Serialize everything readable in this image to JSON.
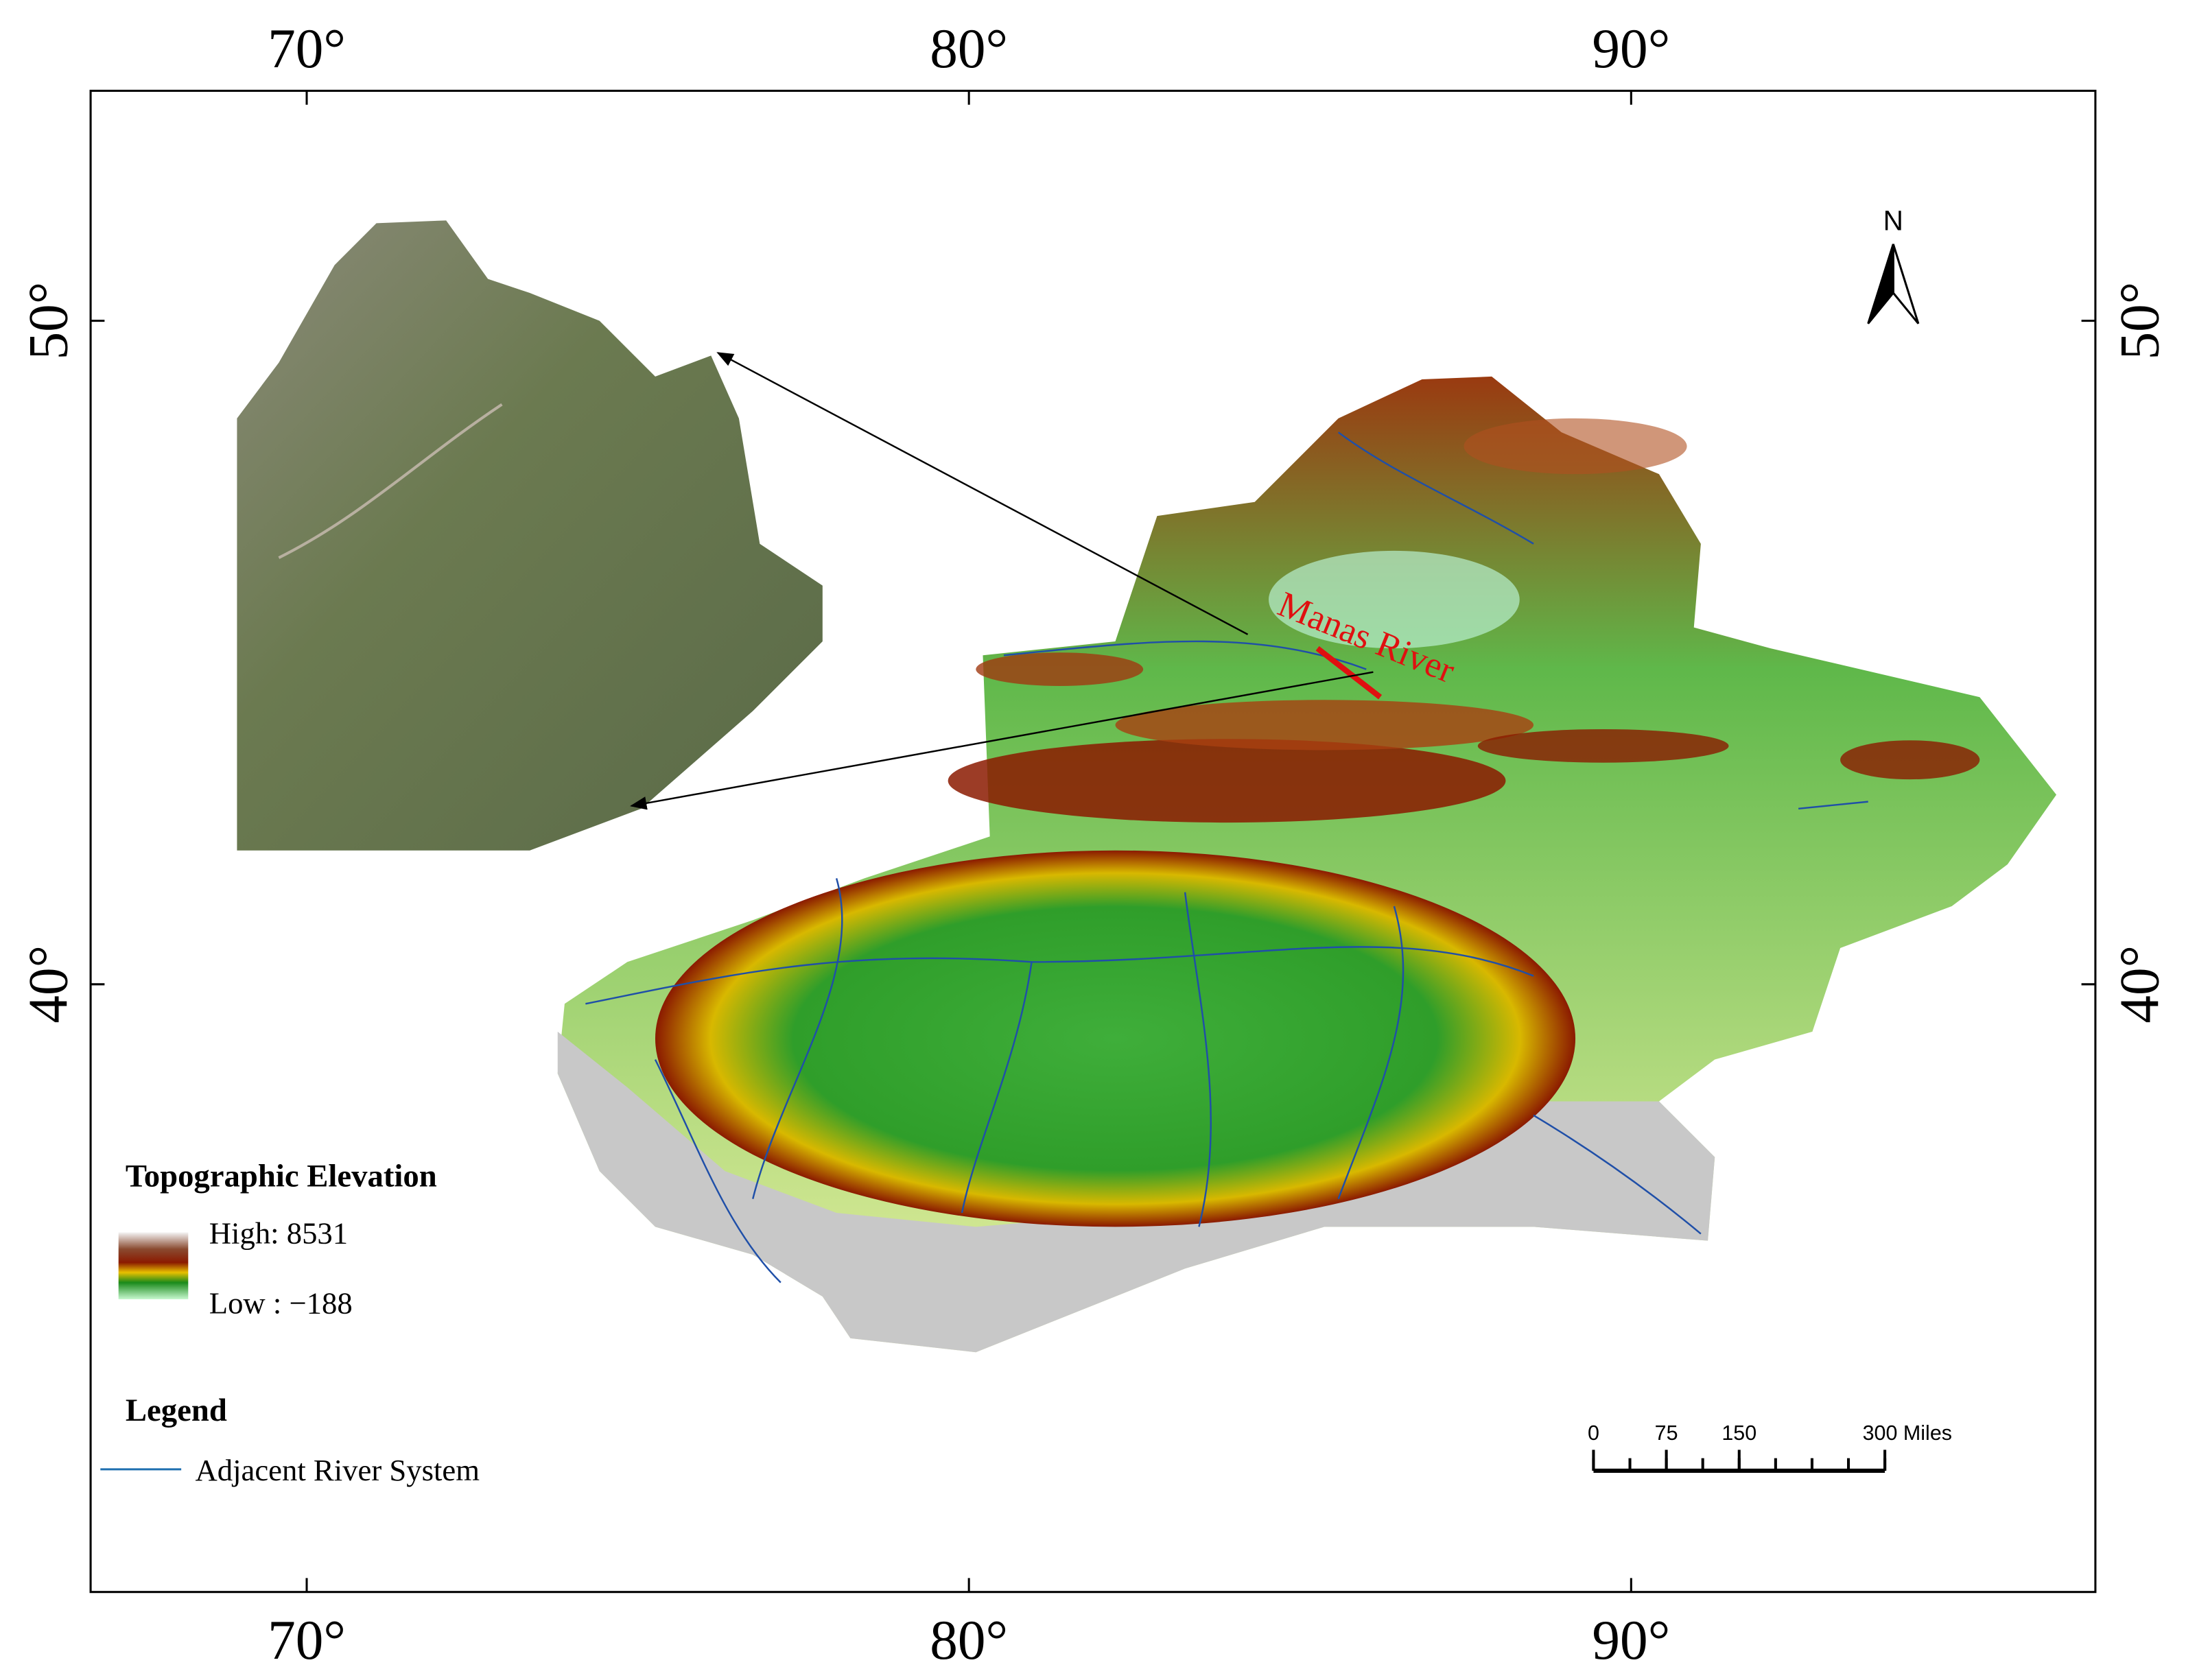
{
  "map": {
    "lon_ticks": [
      {
        "value": 70,
        "label": "70°"
      },
      {
        "value": 80,
        "label": "80°"
      },
      {
        "value": 90,
        "label": "90°"
      }
    ],
    "lat_ticks": [
      {
        "value": 50,
        "label": "50°"
      },
      {
        "value": 40,
        "label": "40°"
      }
    ],
    "north": "N",
    "annotation": "Manas River",
    "elevation_legend": {
      "title": "Topographic Elevation",
      "high": "High: 8531",
      "low": "Low : −188"
    },
    "legend": {
      "title": "Legend",
      "items": [
        "Adjacent River System"
      ]
    },
    "scale_bar": {
      "ticks": [
        0,
        75,
        150,
        {
          "value": 300,
          "label": "300 Miles"
        }
      ]
    }
  }
}
